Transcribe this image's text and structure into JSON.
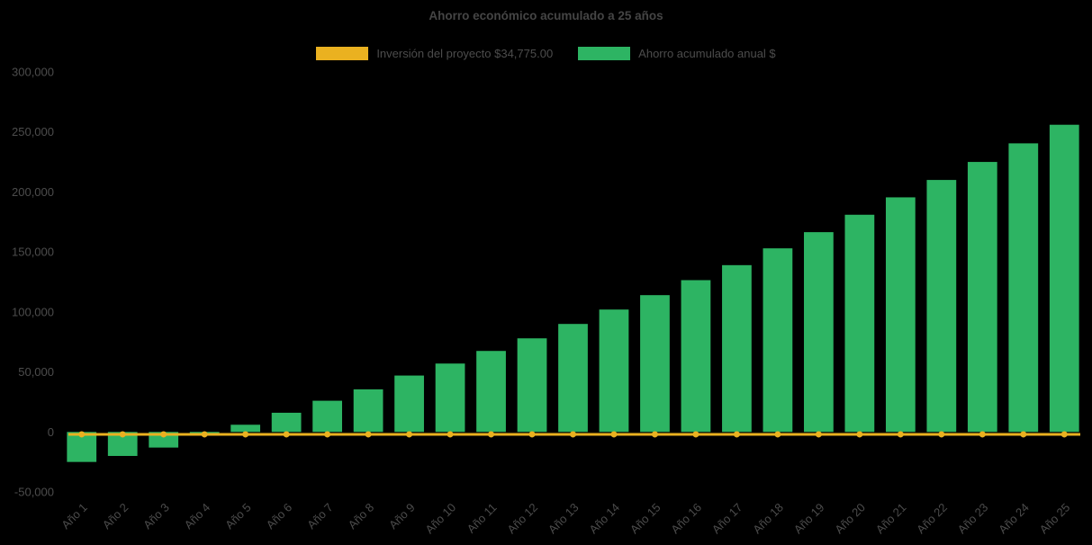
{
  "page": {
    "background": "#000000",
    "text_color": "#4c4c4c"
  },
  "chart_data": {
    "type": "bar",
    "title": "Ahorro económico acumulado a 25 años",
    "categories": [
      "Año 1",
      "Año 2",
      "Año 3",
      "Año 4",
      "Año 5",
      "Año 6",
      "Año 7",
      "Año 8",
      "Año 9",
      "Año 10",
      "Año 11",
      "Año 12",
      "Año 13",
      "Año 14",
      "Año 15",
      "Año 16",
      "Año 17",
      "Año 18",
      "Año 19",
      "Año 20",
      "Año 21",
      "Año 22",
      "Año 23",
      "Año 24",
      "Año 25"
    ],
    "series": [
      {
        "name": "Inversión del proyecto $34,775.00",
        "type": "line",
        "color": "#eab120",
        "marker": "circle",
        "values": [
          -2000,
          -2000,
          -2000,
          -2000,
          -2000,
          -2000,
          -2000,
          -2000,
          -2000,
          -2000,
          -2000,
          -2000,
          -2000,
          -2000,
          -2000,
          -2000,
          -2000,
          -2000,
          -2000,
          -2000,
          -2000,
          -2000,
          -2000,
          -2000,
          -2000
        ]
      },
      {
        "name": "Ahorro acumulado anual $",
        "type": "bar",
        "color": "#2db463",
        "values": [
          -25000,
          -20000,
          -13000,
          -2500,
          6000,
          16000,
          26000,
          35500,
          47000,
          57000,
          67500,
          78000,
          90000,
          102000,
          114000,
          126500,
          139000,
          153000,
          166500,
          181000,
          195500,
          210000,
          225000,
          240500,
          256000
        ]
      }
    ],
    "ylim": [
      -50000,
      300000
    ],
    "yticks": [
      -50000,
      0,
      50000,
      100000,
      150000,
      200000,
      250000,
      300000
    ],
    "ytick_labels": [
      "-50,000",
      "0",
      "50,000",
      "100,000",
      "150,000",
      "200,000",
      "250,000",
      "300,000"
    ],
    "x_tick_rotation": 45,
    "grid": false,
    "legend_position": "top-center"
  }
}
